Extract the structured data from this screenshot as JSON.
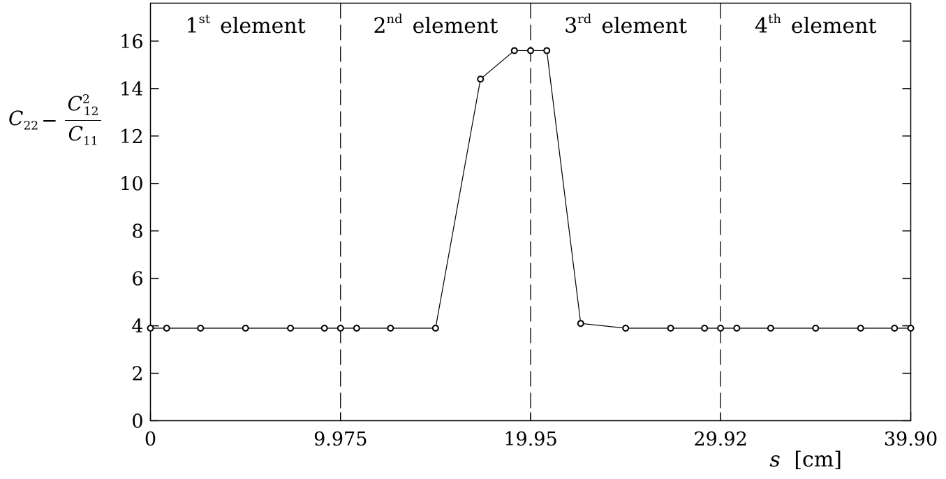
{
  "chart_data": {
    "type": "line",
    "ylabel": {
      "symbol_a": "C",
      "sub_a": "22",
      "minus": "−",
      "num_symbol": "C",
      "num_sub": "12",
      "num_sup": "2",
      "den_symbol": "C",
      "den_sub": "11"
    },
    "xlabel": {
      "symbol": "s",
      "unit": "[cm]"
    },
    "xlim": [
      0,
      39.9
    ],
    "ylim": [
      0,
      17.6
    ],
    "xticks": [
      0,
      9.975,
      19.95,
      29.92,
      39.9
    ],
    "xtick_labels": [
      "0",
      "9.975",
      "19.95",
      "29.92",
      "39.90"
    ],
    "yticks": [
      0,
      2,
      4,
      6,
      8,
      10,
      12,
      14,
      16
    ],
    "ytick_labels": [
      "0",
      "2",
      "4",
      "6",
      "8",
      "10",
      "12",
      "14",
      "16"
    ],
    "element_boundaries": [
      9.975,
      19.95,
      29.92
    ],
    "regions": [
      {
        "num": "1",
        "sup": "st",
        "label": "element"
      },
      {
        "num": "2",
        "sup": "nd",
        "label": "element"
      },
      {
        "num": "3",
        "sup": "rd",
        "label": "element"
      },
      {
        "num": "4",
        "sup": "th",
        "label": "element"
      }
    ],
    "series": [
      {
        "marker": "open-circle",
        "x": [
          0,
          0.85,
          2.63,
          4.99,
          7.35,
          9.13,
          9.975,
          10.82,
          12.6,
          14.96,
          17.32,
          19.1,
          19.95,
          20.8,
          22.58,
          24.94,
          27.3,
          29.08,
          29.92,
          30.77,
          32.55,
          34.91,
          37.27,
          39.05,
          39.9
        ],
        "y": [
          3.9,
          3.9,
          3.9,
          3.9,
          3.9,
          3.9,
          3.9,
          3.9,
          3.9,
          3.9,
          14.4,
          15.6,
          15.6,
          15.6,
          4.1,
          3.9,
          3.9,
          3.9,
          3.9,
          3.9,
          3.9,
          3.9,
          3.9,
          3.9,
          3.9
        ]
      }
    ],
    "grid": false
  }
}
